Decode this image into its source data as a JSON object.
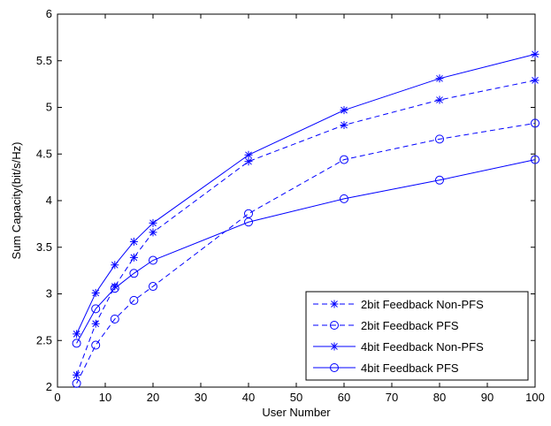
{
  "chart_data": {
    "type": "line",
    "title": "",
    "xlabel": "User Number",
    "ylabel": "Sum Capacity(bit/s/Hz)",
    "xlim": [
      0,
      100
    ],
    "ylim": [
      2,
      6
    ],
    "xticks": [
      0,
      10,
      20,
      30,
      40,
      50,
      60,
      70,
      80,
      90,
      100
    ],
    "yticks": [
      2,
      2.5,
      3,
      3.5,
      4,
      4.5,
      5,
      5.5,
      6
    ],
    "xtick_labels": [
      "0",
      "10",
      "20",
      "30",
      "40",
      "50",
      "60",
      "70",
      "80",
      "90",
      "100"
    ],
    "ytick_labels": [
      "2",
      "2.5",
      "3",
      "3.5",
      "4",
      "4.5",
      "5",
      "5.5",
      "6"
    ],
    "grid": false,
    "legend_position": "bottom-right",
    "x": [
      4,
      8,
      12,
      16,
      20,
      40,
      60,
      80,
      100
    ],
    "series": [
      {
        "name": "2bit Feedback Non-PFS",
        "line_style": "dashed",
        "marker": "asterisk",
        "color": "#0000ff",
        "values": [
          2.13,
          2.68,
          3.08,
          3.39,
          3.66,
          4.42,
          4.81,
          5.08,
          5.29
        ]
      },
      {
        "name": "2bit Feedback PFS",
        "line_style": "dashed",
        "marker": "circle",
        "color": "#0000ff",
        "values": [
          2.04,
          2.45,
          2.73,
          2.93,
          3.08,
          3.86,
          4.44,
          4.66,
          4.83
        ]
      },
      {
        "name": "4bit Feedback Non-PFS",
        "line_style": "solid",
        "marker": "asterisk",
        "color": "#0000ff",
        "values": [
          2.57,
          3.01,
          3.31,
          3.56,
          3.76,
          4.49,
          4.97,
          5.31,
          5.57
        ]
      },
      {
        "name": "4bit Feedback PFS",
        "line_style": "solid",
        "marker": "circle",
        "color": "#0000ff",
        "values": [
          2.47,
          2.84,
          3.06,
          3.22,
          3.36,
          3.77,
          4.02,
          4.22,
          4.44
        ]
      }
    ]
  }
}
